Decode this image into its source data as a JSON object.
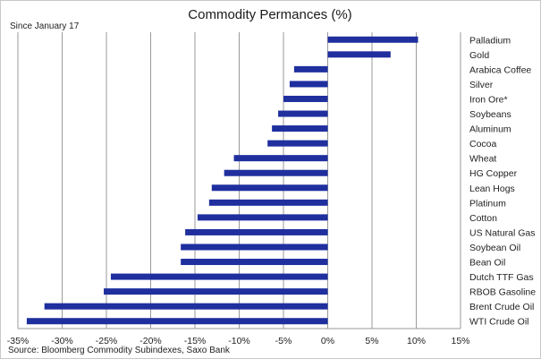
{
  "chart_data": {
    "type": "bar",
    "orientation": "horizontal",
    "title": "Commodity Permances (%)",
    "subtitle": "Since January 17",
    "source": "Source: Bloomberg Commodity Subindexes, Saxo Bank",
    "xlim": [
      -35,
      15
    ],
    "x_ticks": [
      "-35%",
      "-30%",
      "-25%",
      "-20%",
      "-15%",
      "-10%",
      "-5%",
      "0%",
      "5%",
      "10%",
      "15%"
    ],
    "grid": "vertical",
    "bar_color": "#1f2f9e",
    "categories": [
      "Palladium",
      "Gold",
      "Arabica Coffee",
      "Silver",
      "Iron Ore*",
      "Soybeans",
      "Aluminum",
      "Cocoa",
      "Wheat",
      "HG Copper",
      "Lean Hogs",
      "Platinum",
      "Cotton",
      "US Natural Gas",
      "Soybean Oil",
      "Bean Oil",
      "Dutch TTF Gas",
      "RBOB Gasoline",
      "Brent Crude Oil",
      "WTI Crude Oil"
    ],
    "values": [
      10.2,
      7.1,
      -3.8,
      -4.3,
      -5.0,
      -5.6,
      -6.3,
      -6.8,
      -10.6,
      -11.7,
      -13.1,
      -13.4,
      -14.7,
      -16.1,
      -16.6,
      -16.6,
      -24.5,
      -25.3,
      -32.0,
      -34.0
    ]
  }
}
